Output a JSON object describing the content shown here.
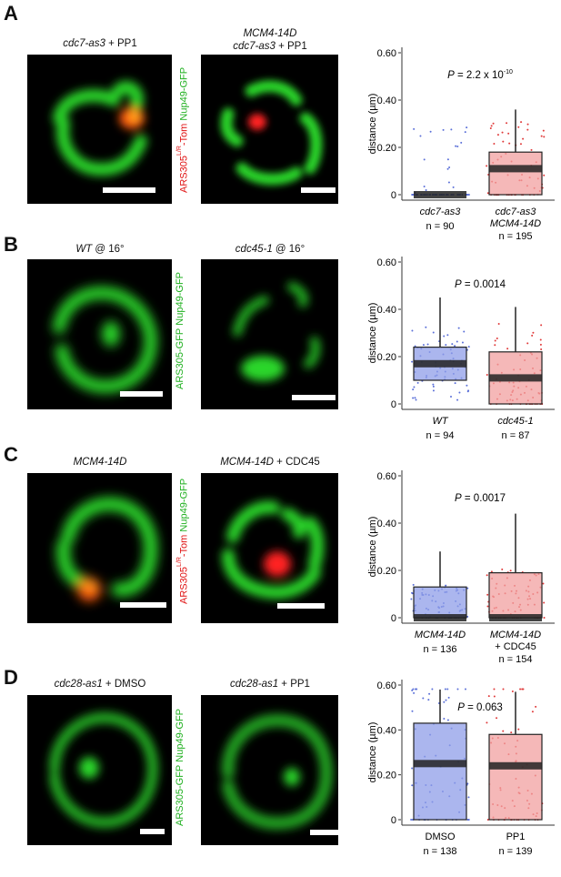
{
  "panels": [
    {
      "letter": "A",
      "images": [
        {
          "title_italic": "cdc7-as3",
          "title_rest": " + PP1",
          "title_line1": ""
        },
        {
          "title_italic": "cdc7-as3",
          "title_rest": " + PP1",
          "title_line1": "MCM4-14D"
        }
      ],
      "side_label_red": "ARS305",
      "side_label_sup": "L/R",
      "side_label_red2": "-Tom",
      "side_label_green": "Nup49-GFP",
      "p_label": "P = 2.2 x 10",
      "p_sup": "-10"
    },
    {
      "letter": "B",
      "images": [
        {
          "title_italic": "WT",
          "title_rest": " @ 16°",
          "title_line1": ""
        },
        {
          "title_italic": "cdc45-1",
          "title_rest": " @ 16°",
          "title_line1": ""
        }
      ],
      "side_label_green1": "ARS305-GFP",
      "side_label_green2": "Nup49-GFP",
      "p_label": "P = 0.0014"
    },
    {
      "letter": "C",
      "images": [
        {
          "title_italic": "MCM4-14D",
          "title_rest": "",
          "title_line1": ""
        },
        {
          "title_italic": "MCM4-14D",
          "title_rest": " + CDC45",
          "title_line1": ""
        }
      ],
      "side_label_red": "ARS305",
      "side_label_sup": "L/R",
      "side_label_red2": "-Tom",
      "side_label_green": "Nup49-GFP",
      "p_label": "P = 0.0017"
    },
    {
      "letter": "D",
      "images": [
        {
          "title_italic": "cdc28-as1",
          "title_rest": " + DMSO",
          "title_line1": ""
        },
        {
          "title_italic": "cdc28-as1",
          "title_rest": " + PP1",
          "title_line1": ""
        }
      ],
      "side_label_green1": "ARS305-GFP",
      "side_label_green2": "Nup49-GFP",
      "p_label": "P = 0.063"
    }
  ],
  "chart_data": [
    {
      "type": "box",
      "ylabel": "distance (µm)",
      "ylim": [
        0,
        0.6
      ],
      "yticks": [
        "0",
        "0.20",
        "0.40",
        "0.60"
      ],
      "groups": [
        {
          "label_line1": "cdc7-as3",
          "label_line2": "",
          "n": "n = 90",
          "color": "#5a6fd8",
          "box_fill": "#8f9ee8",
          "q1": 0.0,
          "median": 0.0,
          "q3": 0.0,
          "whisker_high": 0.0
        },
        {
          "label_line1": "cdc7-as3",
          "label_line2": "MCM4-14D",
          "n": "n = 195",
          "color": "#e03a3a",
          "box_fill": "#f2a0a0",
          "q1": 0.0,
          "median": 0.11,
          "q3": 0.18,
          "whisker_high": 0.36
        }
      ]
    },
    {
      "type": "box",
      "ylabel": "distance (µm)",
      "ylim": [
        0,
        0.6
      ],
      "yticks": [
        "0",
        "0.20",
        "0.40",
        "0.60"
      ],
      "groups": [
        {
          "label_line1": "WT",
          "label_line2": "",
          "n": "n = 94",
          "color": "#5a6fd8",
          "box_fill": "#8f9ee8",
          "q1": 0.1,
          "median": 0.17,
          "q3": 0.24,
          "whisker_high": 0.45
        },
        {
          "label_line1": "cdc45-1",
          "label_line2": "",
          "n": "n = 87",
          "color": "#e03a3a",
          "box_fill": "#f2a0a0",
          "q1": 0.0,
          "median": 0.11,
          "q3": 0.22,
          "whisker_high": 0.41
        }
      ]
    },
    {
      "type": "box",
      "ylabel": "distance (µm)",
      "ylim": [
        0,
        0.6
      ],
      "yticks": [
        "0",
        "0.20",
        "0.40",
        "0.60"
      ],
      "groups": [
        {
          "label_line1": "MCM4-14D",
          "label_line2": "",
          "n": "n = 136",
          "color": "#5a6fd8",
          "box_fill": "#8f9ee8",
          "q1": 0.0,
          "median": 0.0,
          "q3": 0.13,
          "whisker_high": 0.28
        },
        {
          "label_line1": "MCM4-14D",
          "label_line2": "+ CDC45",
          "n": "n = 154",
          "color": "#e03a3a",
          "box_fill": "#f2a0a0",
          "q1": 0.0,
          "median": 0.0,
          "q3": 0.19,
          "whisker_high": 0.44
        }
      ]
    },
    {
      "type": "box",
      "ylabel": "distance (µm)",
      "ylim": [
        0,
        0.6
      ],
      "yticks": [
        "0",
        "0.20",
        "0.40",
        "0.60"
      ],
      "groups": [
        {
          "label_line1": "DMSO",
          "label_line2": "",
          "n": "n = 138",
          "color": "#5a6fd8",
          "box_fill": "#8f9ee8",
          "q1": 0.0,
          "median": 0.25,
          "q3": 0.43,
          "whisker_high": 0.58
        },
        {
          "label_line1": "PP1",
          "label_line2": "",
          "n": "n = 139",
          "color": "#e03a3a",
          "box_fill": "#f2a0a0",
          "q1": 0.0,
          "median": 0.24,
          "q3": 0.38,
          "whisker_high": 0.57
        }
      ]
    }
  ]
}
